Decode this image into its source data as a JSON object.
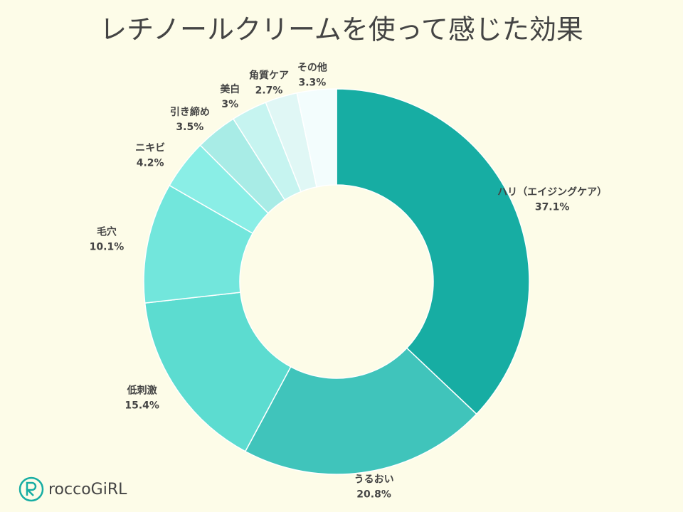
{
  "chart_data": {
    "type": "donut",
    "title": "レチノールクリームを使って感じた効果",
    "categories": [
      "ハリ（エイジングケア）",
      "うるおい",
      "低刺激",
      "毛穴",
      "ニキビ",
      "引き締め",
      "美白",
      "角質ケア",
      "その他"
    ],
    "values": [
      37.1,
      20.8,
      15.4,
      10.1,
      4.2,
      3.5,
      3,
      2.7,
      3.3
    ],
    "value_labels": [
      "37.1%",
      "20.8%",
      "15.4%",
      "10.1%",
      "4.2%",
      "3.5%",
      "3%",
      "2.7%",
      "3.3%"
    ],
    "colors": [
      "#17ada3",
      "#40c4bb",
      "#5cdcd0",
      "#72e6dc",
      "#8aeee6",
      "#a8ece6",
      "#c6f4f0",
      "#e0f7f5",
      "#f3fdfd"
    ]
  },
  "brand": "roccoGiRL"
}
